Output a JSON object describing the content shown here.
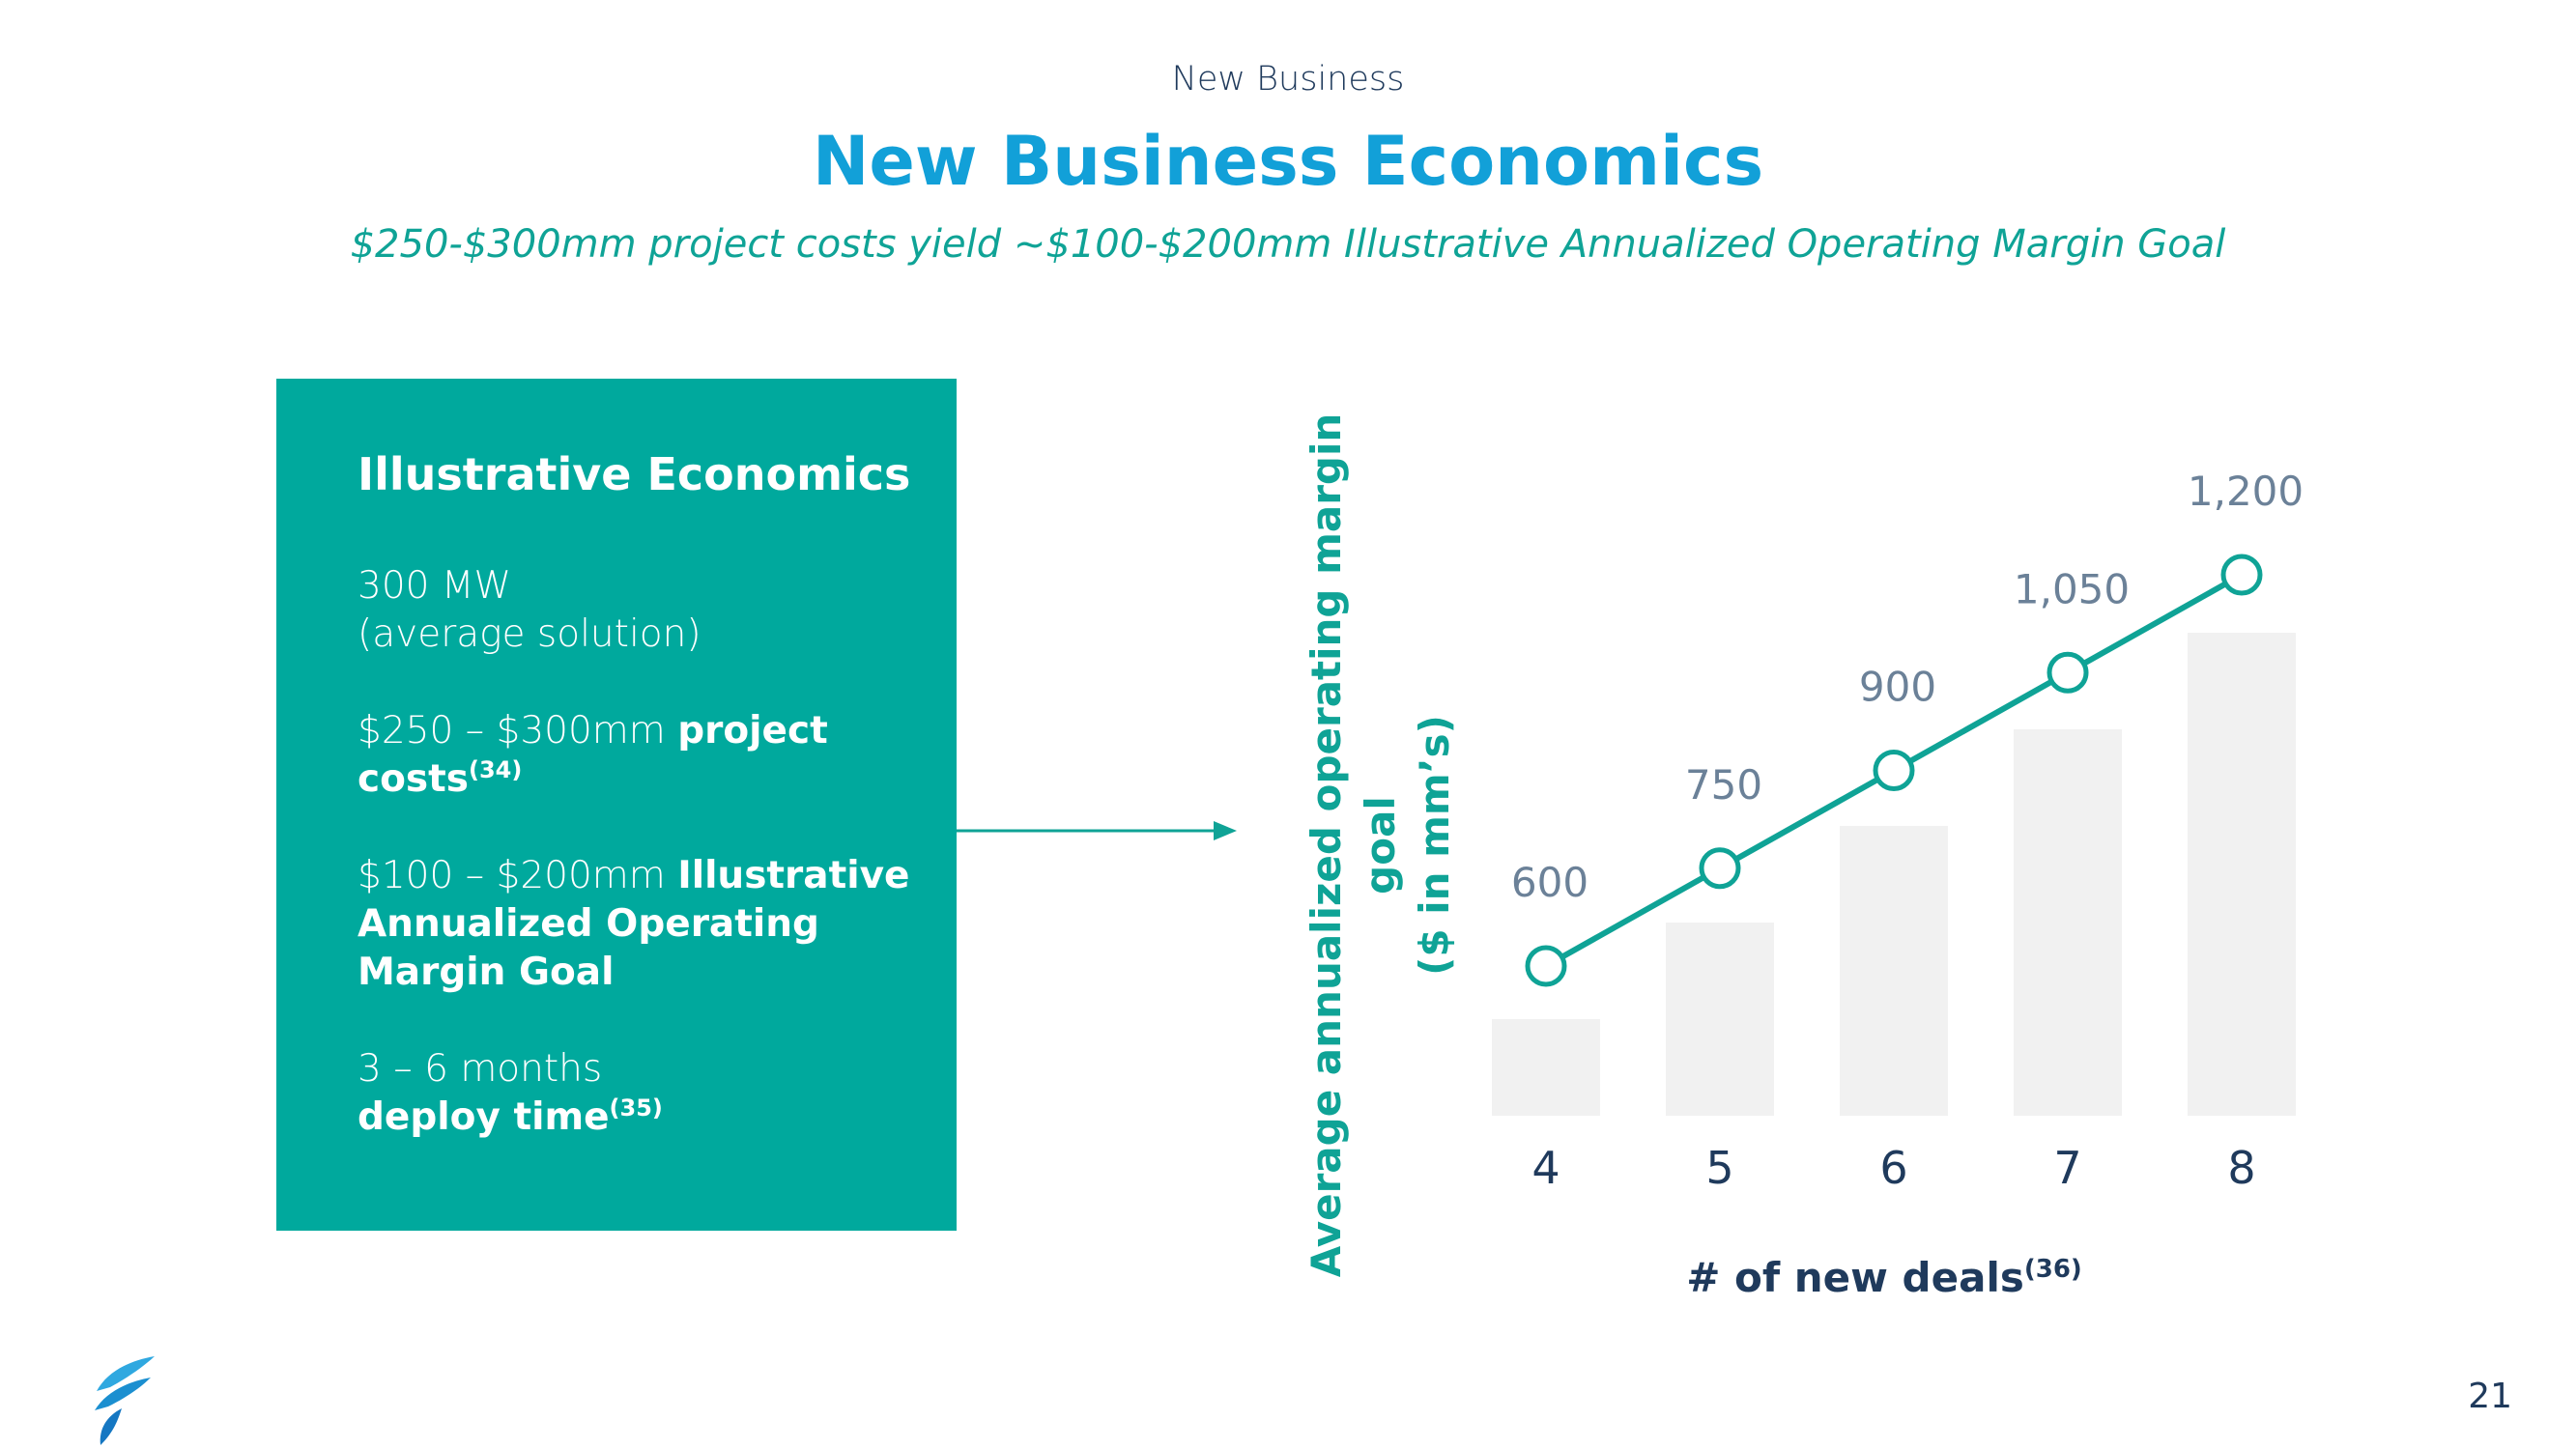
{
  "header": {
    "section": "New Business",
    "title": "New Business Economics",
    "subtitle": "$250-$300mm project costs yield ~$100-$200mm Illustrative Annualized Operating Margin Goal"
  },
  "econ_box": {
    "title": "Illustrative Economics",
    "capacity_value": "300 MW",
    "capacity_note": "(average solution)",
    "costs_value": "$250 – $300mm",
    "costs_label_1": "project",
    "costs_label_2": "costs",
    "costs_footnote": "(34)",
    "margin_value": "$100 – $200mm",
    "margin_label_1": "Illustrative",
    "margin_label_2": "Annualized Operating",
    "margin_label_3": "Margin Goal",
    "deploy_value": "3 – 6 months",
    "deploy_label": "deploy time",
    "deploy_footnote": "(35)"
  },
  "chart_data": {
    "type": "line",
    "title": "",
    "xlabel": "# of new deals",
    "xlabel_footnote": "(36)",
    "ylabel_line1": "Average annualized operating margin goal",
    "ylabel_line2": "($ in mm’s)",
    "categories": [
      "4",
      "5",
      "6",
      "7",
      "8"
    ],
    "series": [
      {
        "name": "Average annualized operating margin goal",
        "values": [
          600,
          750,
          900,
          1050,
          1200
        ],
        "labels": [
          "600",
          "750",
          "900",
          "1,050",
          "1,200"
        ]
      }
    ],
    "ylim": [
      450,
      1400
    ],
    "grid": false,
    "background_bars": true
  },
  "footer": {
    "page_number": "21"
  },
  "colors": {
    "teal": "#00a99d",
    "line_teal": "#0fa396",
    "title_blue": "#12a0d8",
    "navy": "#1f3a5c",
    "bar_gray": "#f1f1f1",
    "label_gray": "#6b8198"
  }
}
